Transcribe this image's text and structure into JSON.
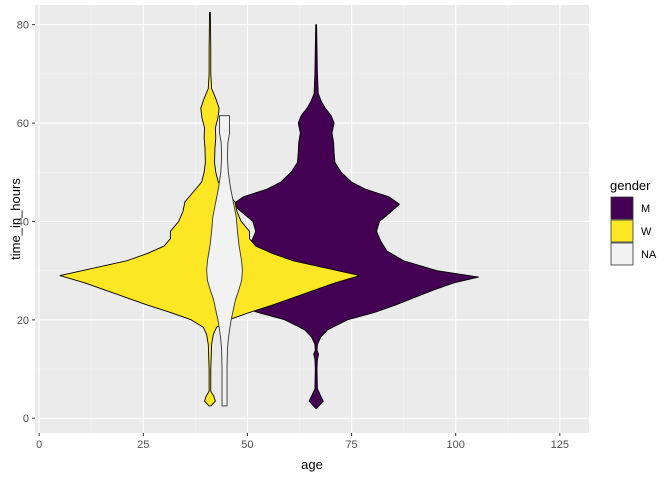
{
  "chart_data": {
    "type": "violin",
    "xlabel": "age",
    "ylabel": "time_in_hours",
    "xlim": [
      -1,
      132
    ],
    "ylim": [
      -3,
      84
    ],
    "x_ticks": [
      0,
      25,
      50,
      75,
      100,
      125
    ],
    "y_ticks": [
      0,
      20,
      40,
      60,
      80
    ],
    "grid": true,
    "legend": {
      "title": "gender",
      "placement": "right",
      "entries": [
        {
          "label": "M",
          "color": "#440154"
        },
        {
          "label": "W",
          "color": "#FDE725"
        },
        {
          "label": "NA",
          "color": "#F2F2F2"
        }
      ]
    },
    "series": [
      {
        "name": "M",
        "center": 66.5,
        "fill": "#440154",
        "outline": "#000000",
        "profile": [
          [
            2,
            0.1
          ],
          [
            3.5,
            1.7
          ],
          [
            4.5,
            1.1
          ],
          [
            6,
            0.3
          ],
          [
            10,
            0.2
          ],
          [
            12,
            0.3
          ],
          [
            13,
            0.6
          ],
          [
            13.8,
            0.2
          ],
          [
            15,
            0.3
          ],
          [
            16.5,
            1.1
          ],
          [
            18,
            2.8
          ],
          [
            20,
            7.5
          ],
          [
            21.5,
            14
          ],
          [
            23,
            19
          ],
          [
            24.5,
            23.5
          ],
          [
            26,
            28
          ],
          [
            27.5,
            33
          ],
          [
            28.7,
            39
          ],
          [
            30,
            29
          ],
          [
            32,
            21
          ],
          [
            34,
            17
          ],
          [
            36,
            15.5
          ],
          [
            38,
            14.5
          ],
          [
            40,
            15.2
          ],
          [
            42,
            18
          ],
          [
            43.5,
            20
          ],
          [
            45,
            17.5
          ],
          [
            46.5,
            12
          ],
          [
            48,
            8.5
          ],
          [
            50,
            6
          ],
          [
            52,
            4.5
          ],
          [
            54,
            4.3
          ],
          [
            56,
            4.2
          ],
          [
            58,
            3.8
          ],
          [
            60,
            4.3
          ],
          [
            61.5,
            3.6
          ],
          [
            63,
            2.2
          ],
          [
            64.5,
            1.2
          ],
          [
            66,
            0.5
          ],
          [
            70,
            0.3
          ],
          [
            75,
            0.2
          ],
          [
            80,
            0.1
          ]
        ]
      },
      {
        "name": "W",
        "center": 41,
        "fill": "#FDE725",
        "outline": "#000000",
        "profile": [
          [
            2.5,
            0.2
          ],
          [
            3.5,
            1.3
          ],
          [
            4.5,
            0.9
          ],
          [
            5.5,
            0.2
          ],
          [
            10,
            0.2
          ],
          [
            15,
            0.4
          ],
          [
            17,
            0.8
          ],
          [
            18.5,
            1.6
          ],
          [
            20,
            4.5
          ],
          [
            21.5,
            9.5
          ],
          [
            23,
            15
          ],
          [
            24.5,
            20
          ],
          [
            26,
            25
          ],
          [
            27.5,
            30
          ],
          [
            29,
            36
          ],
          [
            30.5,
            28
          ],
          [
            32,
            20
          ],
          [
            33.5,
            15
          ],
          [
            35,
            11
          ],
          [
            36.5,
            9.5
          ],
          [
            38,
            9.5
          ],
          [
            40,
            7.5
          ],
          [
            42,
            6.5
          ],
          [
            44,
            6
          ],
          [
            45,
            5
          ],
          [
            46.5,
            3.5
          ],
          [
            48,
            2
          ],
          [
            50,
            1.4
          ],
          [
            52,
            1.1
          ],
          [
            55,
            1.2
          ],
          [
            57,
            1.4
          ],
          [
            59,
            1.3
          ],
          [
            61,
            1.9
          ],
          [
            63,
            2.2
          ],
          [
            65,
            1.4
          ],
          [
            67,
            0.4
          ],
          [
            70,
            0.2
          ],
          [
            75,
            0.2
          ],
          [
            82.5,
            0.1
          ]
        ]
      },
      {
        "name": "NA",
        "center": 44.5,
        "fill": "#F2F2F2",
        "outline": "#333333",
        "profile": [
          [
            2.5,
            0.6
          ],
          [
            10,
            0.6
          ],
          [
            14,
            0.7
          ],
          [
            16,
            0.9
          ],
          [
            18,
            1.2
          ],
          [
            20,
            1.6
          ],
          [
            22,
            2.1
          ],
          [
            24,
            2.6
          ],
          [
            26,
            3.4
          ],
          [
            28,
            4.1
          ],
          [
            30,
            4.3
          ],
          [
            32,
            4.1
          ],
          [
            35,
            3.5
          ],
          [
            38,
            3.1
          ],
          [
            41,
            2.8
          ],
          [
            44,
            2.1
          ],
          [
            47,
            1.4
          ],
          [
            50,
            0.9
          ],
          [
            53,
            0.7
          ],
          [
            56,
            0.8
          ],
          [
            58,
            1.2
          ],
          [
            61.5,
            1.2
          ]
        ]
      }
    ]
  }
}
